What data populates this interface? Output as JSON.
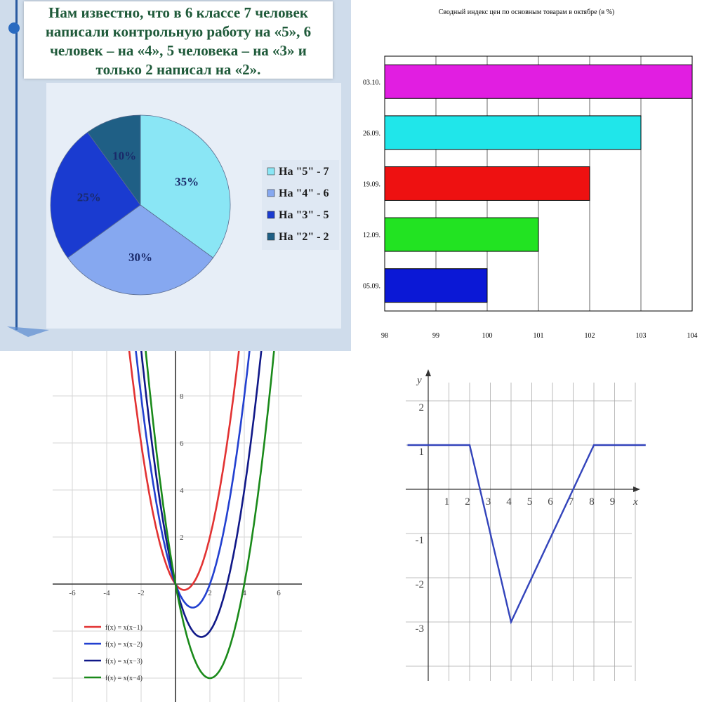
{
  "colors": {
    "pie": [
      "#8ae6f5",
      "#86a8f0",
      "#1a3bd0",
      "#1f5f85"
    ],
    "bars": [
      "#0b18d6",
      "#22e322",
      "#ee1111",
      "#20e6ea",
      "#e11ee1"
    ],
    "parabolas": [
      "#e23232",
      "#2240d0",
      "#101888",
      "#1a8a1a"
    ],
    "piecewise": "#3344bb"
  },
  "chart_data": [
    {
      "type": "pie",
      "title": "Нам известно, что в 6 классе 7 человек написали контрольную работу на «5», 6 человек – на «4», 5 человека – на «3» и только 2 написал на «2».",
      "slices": [
        {
          "label": "35%",
          "value": 35,
          "legend": "На \"5\" - 7"
        },
        {
          "label": "30%",
          "value": 30,
          "legend": "На \"4\" - 6"
        },
        {
          "label": "25%",
          "value": 25,
          "legend": "На \"3\" - 5"
        },
        {
          "label": "10%",
          "value": 10,
          "legend": "На \"2\" - 2"
        }
      ],
      "legend_position": "right"
    },
    {
      "type": "bar",
      "orientation": "horizontal",
      "title": "Сводный индекс цен по основным товарам в октябре (в %)",
      "categories": [
        "05.09.",
        "12.09.",
        "19.09.",
        "26.09.",
        "03.10."
      ],
      "values": [
        100,
        101,
        102,
        103,
        104
      ],
      "xlim": [
        98,
        104
      ],
      "xticks": [
        "98",
        "99",
        "100",
        "101",
        "102",
        "103",
        "104"
      ],
      "grid": true
    },
    {
      "type": "line",
      "title": "",
      "xlim": [
        -7,
        7
      ],
      "ylim": [
        -5,
        10
      ],
      "xticks": [
        "-6",
        "-4",
        "-2",
        "2",
        "4",
        "6"
      ],
      "yticks": [
        "2",
        "4",
        "6",
        "8"
      ],
      "grid": true,
      "legend_position": "bottom-left",
      "series": [
        {
          "name": "f(x) = x(x−1)",
          "a": 1
        },
        {
          "name": "f(x) = x(x−2)",
          "a": 2
        },
        {
          "name": "f(x) = x(x−3)",
          "a": 3
        },
        {
          "name": "f(x) = x(x−4)",
          "a": 4
        }
      ]
    },
    {
      "type": "line",
      "title": "",
      "xlabel": "x",
      "ylabel": "y",
      "xlim": [
        -1,
        10.5
      ],
      "ylim": [
        -4.5,
        2.8
      ],
      "xticks": [
        "1",
        "2",
        "3",
        "4",
        "5",
        "6",
        "7",
        "8",
        "9"
      ],
      "yticks": [
        "2",
        "1",
        "-1",
        "-2",
        "-3"
      ],
      "grid": true,
      "points": [
        [
          -1,
          1
        ],
        [
          2,
          1
        ],
        [
          4,
          -3
        ],
        [
          8,
          1
        ],
        [
          10.5,
          1
        ]
      ]
    }
  ]
}
